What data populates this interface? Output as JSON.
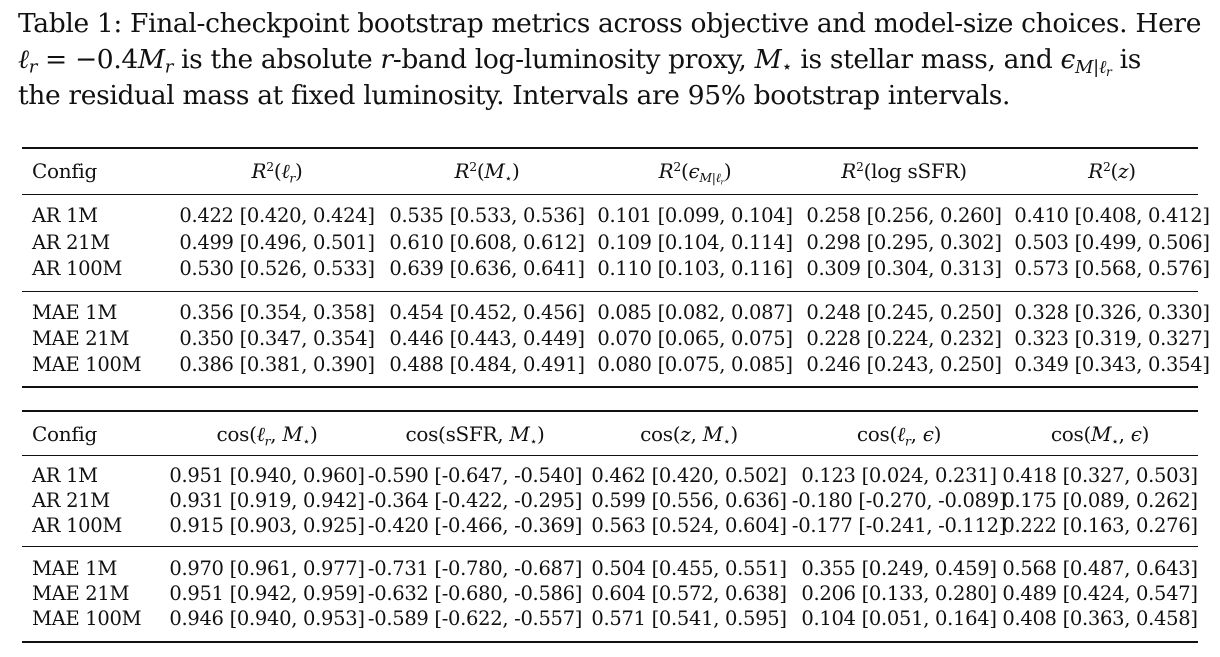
{
  "caption": {
    "label": "Table 1:",
    "text_1": "Final-checkpoint bootstrap metrics across objective and model-size choices. Here",
    "lr_symbol": "ℓ",
    "lr_sub": "r",
    "eq": " = −0.4",
    "Mr_symbol": "M",
    "Mr_sub": "r",
    "text_2": " is the absolute ",
    "r_italic": "r",
    "text_3": "-band log-luminosity proxy, ",
    "mstar_symbol": "M",
    "mstar_sub": "⋆",
    "text_4": " is stellar mass, and ",
    "eps_symbol": "ϵ",
    "eps_sub": "M|ℓ",
    "eps_subsub": "r",
    "text_5": " is",
    "text_6": "the residual mass at fixed luminosity. Intervals are 95% bootstrap intervals."
  },
  "table1": {
    "header": {
      "config": "Config",
      "cols": [
        {
          "pre": "R",
          "sup": "2",
          "open": "(",
          "sym": "ℓ",
          "sub": "r",
          "close": ")"
        },
        {
          "pre": "R",
          "sup": "2",
          "open": "(",
          "sym": "M",
          "sub": "⋆",
          "close": ")"
        },
        {
          "pre": "R",
          "sup": "2",
          "open": "(",
          "sym": "ϵ",
          "sub": "M|ℓ",
          "subsub": "r",
          "close": ")"
        },
        {
          "pre": "R",
          "sup": "2",
          "open": "(",
          "text": "log sSFR",
          "close": ")"
        },
        {
          "pre": "R",
          "sup": "2",
          "open": "(",
          "sym": "z",
          "close": ")"
        }
      ]
    },
    "rows": [
      {
        "config": "AR 1M",
        "values": [
          "0.422 [0.420, 0.424]",
          "0.535 [0.533, 0.536]",
          "0.101 [0.099, 0.104]",
          "0.258 [0.256, 0.260]",
          "0.410 [0.408, 0.412]"
        ]
      },
      {
        "config": "AR 21M",
        "values": [
          "0.499 [0.496, 0.501]",
          "0.610 [0.608, 0.612]",
          "0.109 [0.104, 0.114]",
          "0.298 [0.295, 0.302]",
          "0.503 [0.499, 0.506]"
        ]
      },
      {
        "config": "AR 100M",
        "values": [
          "0.530 [0.526, 0.533]",
          "0.639 [0.636, 0.641]",
          "0.110 [0.103, 0.116]",
          "0.309 [0.304, 0.313]",
          "0.573 [0.568, 0.576]"
        ]
      },
      {
        "config": "MAE 1M",
        "values": [
          "0.356 [0.354, 0.358]",
          "0.454 [0.452, 0.456]",
          "0.085 [0.082, 0.087]",
          "0.248 [0.245, 0.250]",
          "0.328 [0.326, 0.330]"
        ]
      },
      {
        "config": "MAE 21M",
        "values": [
          "0.350 [0.347, 0.354]",
          "0.446 [0.443, 0.449]",
          "0.070 [0.065, 0.075]",
          "0.228 [0.224, 0.232]",
          "0.323 [0.319, 0.327]"
        ]
      },
      {
        "config": "MAE 100M",
        "values": [
          "0.386 [0.381, 0.390]",
          "0.488 [0.484, 0.491]",
          "0.080 [0.075, 0.085]",
          "0.246 [0.243, 0.250]",
          "0.349 [0.343, 0.354]"
        ]
      }
    ]
  },
  "table2": {
    "header": {
      "config": "Config",
      "cols": [
        {
          "fn": "cos",
          "open": "(",
          "a": "ℓ",
          "a_sub": "r",
          "sep": ", ",
          "b": "M",
          "b_sub": "⋆",
          "close": ")"
        },
        {
          "fn": "cos",
          "open": "(",
          "a_up": "sSFR",
          "sep": ", ",
          "b": "M",
          "b_sub": "⋆",
          "close": ")"
        },
        {
          "fn": "cos",
          "open": "(",
          "a": "z",
          "sep": ", ",
          "b": "M",
          "b_sub": "⋆",
          "close": ")"
        },
        {
          "fn": "cos",
          "open": "(",
          "a": "ℓ",
          "a_sub": "r",
          "sep": ", ",
          "b": "ϵ",
          "close": ")"
        },
        {
          "fn": "cos",
          "open": "(",
          "a": "M",
          "a_sub": "⋆",
          "sep": ", ",
          "b": "ϵ",
          "close": ")"
        }
      ]
    },
    "rows": [
      {
        "config": "AR 1M",
        "values": [
          "0.951 [0.940, 0.960]",
          "-0.590 [-0.647, -0.540]",
          "0.462 [0.420, 0.502]",
          "0.123 [0.024, 0.231]",
          "0.418 [0.327, 0.503]"
        ]
      },
      {
        "config": "AR 21M",
        "values": [
          "0.931 [0.919, 0.942]",
          "-0.364 [-0.422, -0.295]",
          "0.599 [0.556, 0.636]",
          "-0.180 [-0.270, -0.089]",
          "0.175 [0.089, 0.262]"
        ]
      },
      {
        "config": "AR 100M",
        "values": [
          "0.915 [0.903, 0.925]",
          "-0.420 [-0.466, -0.369]",
          "0.563 [0.524, 0.604]",
          "-0.177 [-0.241, -0.112]",
          "0.222 [0.163, 0.276]"
        ]
      },
      {
        "config": "MAE 1M",
        "values": [
          "0.970 [0.961, 0.977]",
          "-0.731 [-0.780, -0.687]",
          "0.504 [0.455, 0.551]",
          "0.355 [0.249, 0.459]",
          "0.568 [0.487, 0.643]"
        ]
      },
      {
        "config": "MAE 21M",
        "values": [
          "0.951 [0.942, 0.959]",
          "-0.632 [-0.680, -0.586]",
          "0.604 [0.572, 0.638]",
          "0.206 [0.133, 0.280]",
          "0.489 [0.424, 0.547]"
        ]
      },
      {
        "config": "MAE 100M",
        "values": [
          "0.946 [0.940, 0.953]",
          "-0.589 [-0.622, -0.557]",
          "0.571 [0.541, 0.595]",
          "0.104 [0.051, 0.164]",
          "0.408 [0.363, 0.458]"
        ]
      }
    ]
  }
}
